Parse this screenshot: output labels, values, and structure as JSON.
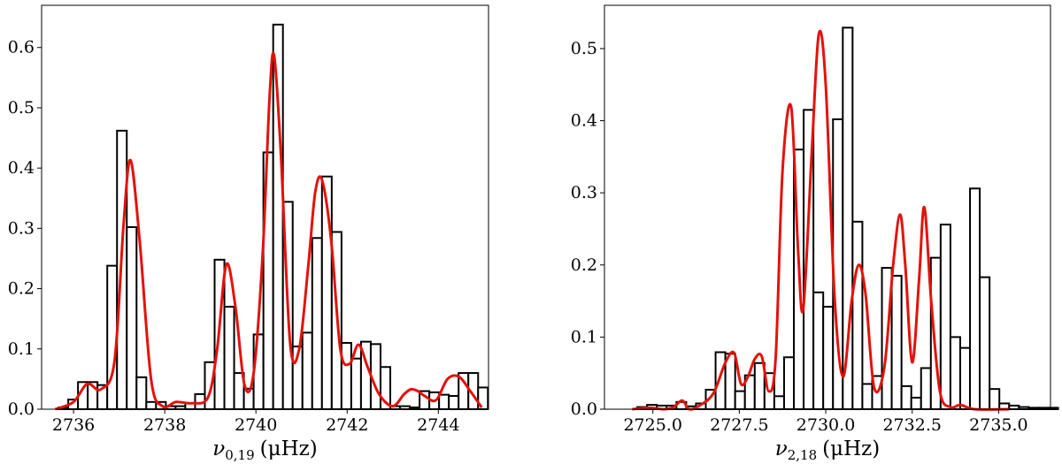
{
  "chart_data": [
    {
      "type": "bar",
      "xlabel_symbol": "ν",
      "xlabel_subscript": "0,19",
      "xlabel_unit": "(μHz)",
      "xlim": [
        2735.3,
        2745.1
      ],
      "ylim": [
        0,
        0.67
      ],
      "xticks": [
        2736,
        2738,
        2740,
        2742,
        2744
      ],
      "xtick_labels": [
        "2736",
        "2738",
        "2740",
        "2742",
        "2744"
      ],
      "yticks": [
        0,
        0.1,
        0.2,
        0.3,
        0.4,
        0.5,
        0.6
      ],
      "ytick_labels": [
        "0.0",
        "0.1",
        "0.2",
        "0.3",
        "0.4",
        "0.5",
        "0.6"
      ],
      "grid": false,
      "bin_width": 0.214,
      "bin_start": 2735.67,
      "bin_values": [
        0.003,
        0.016,
        0.045,
        0.045,
        0.04,
        0.238,
        0.462,
        0.302,
        0.053,
        0.012,
        0.012,
        0.005,
        0.005,
        0.01,
        0.025,
        0.078,
        0.248,
        0.17,
        0.06,
        0.034,
        0.124,
        0.426,
        0.638,
        0.344,
        0.104,
        0.127,
        0.284,
        0.386,
        0.294,
        0.11,
        0.084,
        0.112,
        0.108,
        0.07,
        0.005,
        0.005,
        0.003,
        0.03,
        0.028,
        0.024,
        0.022,
        0.06,
        0.06,
        0.036
      ],
      "bar_edge_color": "#000000",
      "bar_fill_color": "#ffffff",
      "kde_color": "#e3120b",
      "kde_series": {
        "x": [
          2735.6,
          2736.0,
          2736.3,
          2736.6,
          2736.9,
          2737.1,
          2737.25,
          2737.45,
          2737.7,
          2737.95,
          2738.25,
          2738.6,
          2738.95,
          2739.15,
          2739.35,
          2739.55,
          2739.75,
          2739.95,
          2740.15,
          2740.3,
          2740.4,
          2740.55,
          2740.75,
          2740.95,
          2741.15,
          2741.3,
          2741.45,
          2741.65,
          2741.85,
          2742.05,
          2742.25,
          2742.45,
          2742.7,
          2743.0,
          2743.25,
          2743.4,
          2743.55,
          2743.7,
          2743.95,
          2744.2,
          2744.45,
          2744.7,
          2744.95
        ],
        "y": [
          0.0,
          0.012,
          0.042,
          0.033,
          0.08,
          0.31,
          0.413,
          0.28,
          0.05,
          0.005,
          0.012,
          0.01,
          0.02,
          0.1,
          0.24,
          0.17,
          0.04,
          0.06,
          0.26,
          0.52,
          0.586,
          0.42,
          0.11,
          0.1,
          0.24,
          0.36,
          0.38,
          0.28,
          0.1,
          0.075,
          0.107,
          0.07,
          0.025,
          0.005,
          0.025,
          0.033,
          0.03,
          0.022,
          0.015,
          0.05,
          0.054,
          0.03,
          0.003
        ]
      }
    },
    {
      "type": "bar",
      "xlabel_symbol": "ν",
      "xlabel_subscript": "2,18",
      "xlabel_unit": "(μHz)",
      "xlim": [
        2723.6,
        2736.5
      ],
      "ylim": [
        0,
        0.56
      ],
      "xticks": [
        2725.0,
        2727.5,
        2730.0,
        2732.5,
        2735.0
      ],
      "xtick_labels": [
        "2725.0",
        "2727.5",
        "2730.0",
        "2732.5",
        "2735.0"
      ],
      "yticks": [
        0,
        0.1,
        0.2,
        0.3,
        0.4,
        0.5
      ],
      "ytick_labels": [
        "0.0",
        "0.1",
        "0.2",
        "0.3",
        "0.4",
        "0.5"
      ],
      "grid": false,
      "bin_width": 0.283,
      "bin_start": 2724.55,
      "bin_values": [
        0.003,
        0.006,
        0.005,
        0.005,
        0.01,
        0.004,
        0.008,
        0.027,
        0.079,
        0.077,
        0.025,
        0.047,
        0.064,
        0.05,
        0.018,
        0.072,
        0.36,
        0.415,
        0.162,
        0.142,
        0.402,
        0.529,
        0.26,
        0.035,
        0.046,
        0.196,
        0.185,
        0.032,
        0.016,
        0.057,
        0.21,
        0.256,
        0.1,
        0.085,
        0.306,
        0.183,
        0.028,
        0.008,
        0.005,
        0.003,
        0.002,
        0.002,
        0.002
      ],
      "bar_edge_color": "#000000",
      "bar_fill_color": "#ffffff",
      "kde_color": "#e3120b",
      "kde_series": {
        "x": [
          2724.4,
          2724.9,
          2725.3,
          2725.6,
          2725.85,
          2726.05,
          2726.35,
          2726.75,
          2727.1,
          2727.35,
          2727.55,
          2727.75,
          2727.95,
          2728.15,
          2728.35,
          2728.55,
          2728.75,
          2729.0,
          2729.2,
          2729.35,
          2729.6,
          2729.8,
          2730.0,
          2730.25,
          2730.5,
          2730.75,
          2730.95,
          2731.15,
          2731.4,
          2731.7,
          2731.95,
          2732.15,
          2732.3,
          2732.5,
          2732.7,
          2732.85,
          2733.05,
          2733.3,
          2733.6,
          2733.9,
          2734.3,
          2735.3
        ],
        "y": [
          0.0,
          0.002,
          0.0,
          0.003,
          0.012,
          0.0,
          0.005,
          0.022,
          0.065,
          0.078,
          0.035,
          0.045,
          0.07,
          0.073,
          0.025,
          0.07,
          0.33,
          0.419,
          0.22,
          0.14,
          0.36,
          0.52,
          0.45,
          0.16,
          0.045,
          0.15,
          0.2,
          0.16,
          0.03,
          0.06,
          0.2,
          0.27,
          0.2,
          0.065,
          0.18,
          0.28,
          0.15,
          0.025,
          0.003,
          0.006,
          0.0,
          0.0
        ]
      }
    }
  ]
}
